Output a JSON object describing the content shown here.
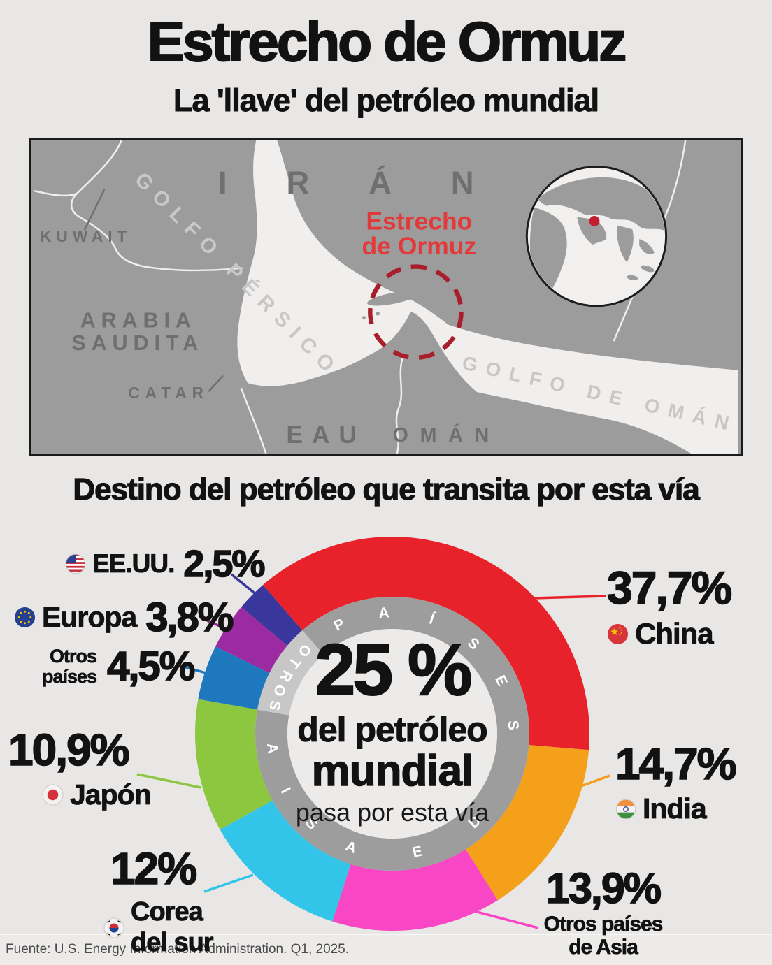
{
  "header": {
    "title": "Estrecho de Ormuz",
    "subtitle": "La 'llave' del petróleo mundial"
  },
  "map": {
    "labels": {
      "iran": "IRÁN",
      "kuwait": "KUWAIT",
      "arabia_line1": "ARABIA",
      "arabia_line2": "SAUDITA",
      "catar": "CATAR",
      "eau": "EAU",
      "oman": "OMÁN",
      "golfo_persico": "GOLFO PÉRSICO",
      "golfo_oman": "GOLFO DE OMÁN",
      "estrecho_line1": "Estrecho",
      "estrecho_line2": "de Ormuz"
    },
    "colors": {
      "land": "#9c9c9c",
      "water": "#f1efed",
      "border_line": "#f1efed",
      "strait_circle": "#a81f2b",
      "strait_label": "#e23a3a",
      "globe_dot": "#c21f2e"
    }
  },
  "section_title": "Destino del petróleo que transita por esta vía",
  "chart_data": {
    "type": "donut",
    "title": "Destino del petróleo que transita por esta vía",
    "start_angle_deg": -41,
    "center": {
      "big": "25 %",
      "line1": "del petróleo",
      "line2": "mundial",
      "line3": "pasa por esta vía"
    },
    "ring_labels": {
      "asia": "PAÍSES DE ASIA",
      "otros": "OTROS"
    },
    "ring_colors": {
      "asia": "#9d9d9d",
      "otros": "#c7c7c7"
    },
    "segments": [
      {
        "id": "china",
        "name": "China",
        "pct": 37.7,
        "pct_label": "37,7%",
        "color": "#e8222a",
        "group": "asia",
        "flag": "china"
      },
      {
        "id": "india",
        "name": "India",
        "pct": 14.7,
        "pct_label": "14,7%",
        "color": "#f5a01b",
        "group": "asia",
        "flag": "india"
      },
      {
        "id": "otros_asia",
        "name": "Otros países de Asia",
        "name_line1": "Otros países",
        "name_line2": "de Asia",
        "pct": 13.9,
        "pct_label": "13,9%",
        "color": "#f846c5",
        "group": "asia"
      },
      {
        "id": "corea",
        "name": "Corea del sur",
        "name_line1": "Corea",
        "name_line2": "del sur",
        "pct": 12.0,
        "pct_label": "12%",
        "color": "#33c4e9",
        "group": "asia",
        "flag": "corea"
      },
      {
        "id": "japon",
        "name": "Japón",
        "pct": 10.9,
        "pct_label": "10,9%",
        "color": "#8dc63f",
        "group": "asia",
        "flag": "japon"
      },
      {
        "id": "otros",
        "name": "Otros países",
        "name_line1": "Otros",
        "name_line2": "países",
        "pct": 4.5,
        "pct_label": "4,5%",
        "color": "#1e78be",
        "group": "otros"
      },
      {
        "id": "europa",
        "name": "Europa",
        "pct": 3.8,
        "pct_label": "3,8%",
        "color": "#9c2aa0",
        "group": "otros",
        "flag": "europa"
      },
      {
        "id": "eeuu",
        "name": "EE.UU.",
        "pct": 2.5,
        "pct_label": "2,5%",
        "color": "#39379b",
        "group": "otros",
        "flag": "eeuu"
      }
    ]
  },
  "footer": {
    "source": "Fuente: U.S. Energy Information Administration. Q1, 2025."
  }
}
